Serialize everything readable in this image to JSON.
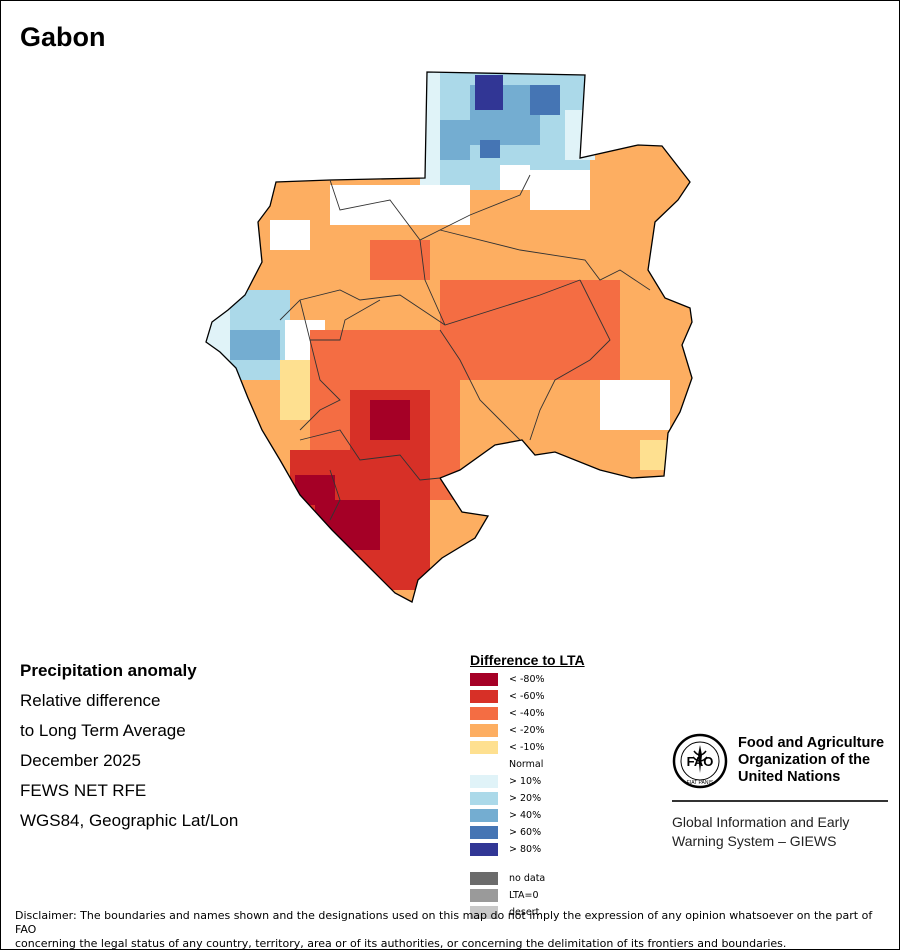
{
  "title": "Gabon",
  "info": {
    "heading": "Precipitation anomaly",
    "line1": "Relative difference",
    "line2": "to Long Term Average",
    "date": "December 2025",
    "source": "FEWS NET RFE",
    "projection": "WGS84, Geographic Lat/Lon"
  },
  "legend": {
    "title": "Difference to LTA",
    "items": [
      {
        "label": "< -80%",
        "color": "#a50026"
      },
      {
        "label": "< -60%",
        "color": "#d73027"
      },
      {
        "label": "< -40%",
        "color": "#f46d43"
      },
      {
        "label": "< -20%",
        "color": "#fdae61"
      },
      {
        "label": "< -10%",
        "color": "#fee090"
      },
      {
        "label": "Normal",
        "color": "#ffffff"
      },
      {
        "label": "> 10%",
        "color": "#e0f3f8"
      },
      {
        "label": "> 20%",
        "color": "#abd9e9"
      },
      {
        "label": "> 40%",
        "color": "#74add1"
      },
      {
        "label": "> 60%",
        "color": "#4575b4"
      },
      {
        "label": "> 80%",
        "color": "#313695"
      }
    ],
    "extra": [
      {
        "label": "no data",
        "color": "#6b6b6b"
      },
      {
        "label": "LTA=0",
        "color": "#9a9a9a"
      },
      {
        "label": "desert",
        "color": "#c8c8c8"
      }
    ]
  },
  "org": {
    "name_line1": "Food and Agriculture",
    "name_line2": "Organization of the",
    "name_line3": "United Nations",
    "emblem_text": "FAO",
    "emblem_motto": "FIAT PANIS",
    "system_line1": "Global Information and Early",
    "system_line2": "Warning System – GIEWS"
  },
  "disclaimer_line1": "Disclaimer: The boundaries and names shown and the designations used on this map do not imply the expression of any opinion whatsoever on the part of FAO",
  "disclaimer_line2": "concerning the legal status of any country, territory, area or of its authorities, or concerning the delimitation of its frontiers and boundaries."
}
